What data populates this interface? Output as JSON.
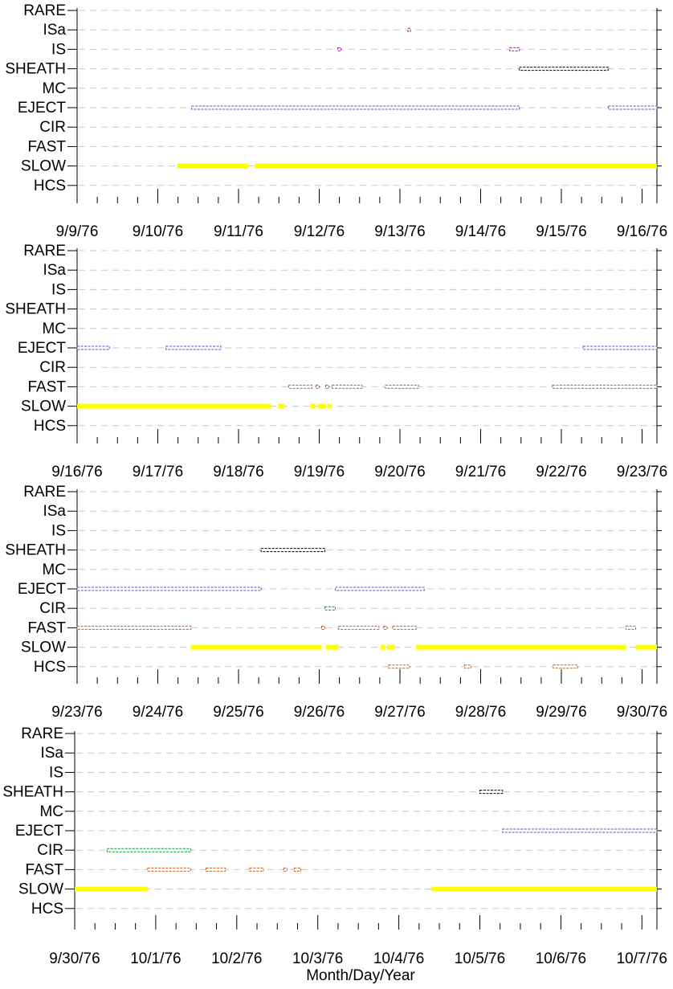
{
  "xlabel": "Month/Day/Year",
  "categories": [
    "RARE",
    "ISa",
    "IS",
    "SHEATH",
    "MC",
    "EJECT",
    "CIR",
    "FAST",
    "SLOW",
    "HCS"
  ],
  "colors": {
    "RARE": "#000000",
    "ISa": "#b22222",
    "IS": "#cc00cc",
    "SHEATH": "#000000",
    "MC": "#000000",
    "EJECT": "#5555bb",
    "CIR": "#009933",
    "FAST": "#c06020",
    "SLOW": "#ffff00",
    "HCS": "#cc6600",
    "grid": "#c8c8c8"
  },
  "chart_data": [
    {
      "type": "timeline",
      "x_start": "9/9/76",
      "x_end": "9/16/76",
      "ticks": [
        "9/9/76",
        "9/10/76",
        "9/11/76",
        "9/12/76",
        "9/13/76",
        "9/14/76",
        "9/15/76",
        "9/16/76"
      ],
      "grid": true,
      "intervals": [
        {
          "category": "ISa",
          "start": 4.1,
          "end": 4.13
        },
        {
          "category": "IS",
          "start": 3.23,
          "end": 3.27
        },
        {
          "category": "IS",
          "start": 5.36,
          "end": 5.48
        },
        {
          "category": "SHEATH",
          "start": 5.48,
          "end": 6.58
        },
        {
          "category": "EJECT",
          "start": 1.42,
          "end": 5.48
        },
        {
          "category": "EJECT",
          "start": 6.58,
          "end": 7.2
        },
        {
          "category": "SLOW",
          "start": 1.24,
          "end": 2.12
        },
        {
          "category": "SLOW",
          "start": 2.2,
          "end": 7.2
        }
      ]
    },
    {
      "type": "timeline",
      "x_start": "9/16/76",
      "x_end": "9/23/76",
      "ticks": [
        "9/16/76",
        "9/17/76",
        "9/18/76",
        "9/19/76",
        "9/20/76",
        "9/21/76",
        "9/22/76",
        "9/23/76"
      ],
      "grid": true,
      "intervals": [
        {
          "category": "EJECT",
          "start": 0.0,
          "end": 0.4
        },
        {
          "category": "EJECT",
          "start": 1.1,
          "end": 1.78
        },
        {
          "category": "EJECT",
          "start": 6.27,
          "end": 7.2
        },
        {
          "category": "FAST",
          "start": 2.62,
          "end": 2.91
        },
        {
          "category": "FAST",
          "start": 2.96,
          "end": 3.0
        },
        {
          "category": "FAST",
          "start": 3.08,
          "end": 3.12
        },
        {
          "category": "FAST",
          "start": 3.16,
          "end": 3.53
        },
        {
          "category": "FAST",
          "start": 3.82,
          "end": 4.23
        },
        {
          "category": "FAST",
          "start": 5.89,
          "end": 7.2
        },
        {
          "category": "SLOW",
          "start": 0.0,
          "end": 2.4
        },
        {
          "category": "SLOW",
          "start": 2.49,
          "end": 2.57
        },
        {
          "category": "SLOW",
          "start": 2.89,
          "end": 2.95
        },
        {
          "category": "SLOW",
          "start": 2.98,
          "end": 3.08
        },
        {
          "category": "SLOW",
          "start": 3.1,
          "end": 3.15
        }
      ]
    },
    {
      "type": "timeline",
      "x_start": "9/23/76",
      "x_end": "9/30/76",
      "ticks": [
        "9/23/76",
        "9/24/76",
        "9/25/76",
        "9/26/76",
        "9/27/76",
        "9/28/76",
        "9/29/76",
        "9/30/76"
      ],
      "grid": true,
      "intervals": [
        {
          "category": "SHEATH",
          "start": 2.28,
          "end": 3.07
        },
        {
          "category": "EJECT",
          "start": 0.0,
          "end": 2.28
        },
        {
          "category": "EJECT",
          "start": 3.2,
          "end": 4.3
        },
        {
          "category": "CIR",
          "start": 3.07,
          "end": 3.2
        },
        {
          "category": "FAST",
          "start": 0.0,
          "end": 1.41
        },
        {
          "category": "FAST",
          "start": 3.03,
          "end": 3.07
        },
        {
          "category": "FAST",
          "start": 3.24,
          "end": 3.74
        },
        {
          "category": "FAST",
          "start": 3.8,
          "end": 3.84
        },
        {
          "category": "FAST",
          "start": 3.91,
          "end": 4.2
        },
        {
          "category": "FAST",
          "start": 6.8,
          "end": 6.92
        },
        {
          "category": "SLOW",
          "start": 1.41,
          "end": 3.03
        },
        {
          "category": "SLOW",
          "start": 3.08,
          "end": 3.24
        },
        {
          "category": "SLOW",
          "start": 3.76,
          "end": 3.81
        },
        {
          "category": "SLOW",
          "start": 3.84,
          "end": 3.94
        },
        {
          "category": "SLOW",
          "start": 4.2,
          "end": 6.8
        },
        {
          "category": "SLOW",
          "start": 6.92,
          "end": 7.2
        },
        {
          "category": "HCS",
          "start": 3.86,
          "end": 4.12
        },
        {
          "category": "HCS",
          "start": 4.8,
          "end": 4.88
        },
        {
          "category": "HCS",
          "start": 5.9,
          "end": 6.2
        }
      ]
    },
    {
      "type": "timeline",
      "x_start": "9/30/76",
      "x_end": "10/7/76",
      "ticks": [
        "9/30/76",
        "10/1/76",
        "10/2/76",
        "10/3/76",
        "10/4/76",
        "10/5/76",
        "10/6/76",
        "10/7/76"
      ],
      "grid": true,
      "intervals": [
        {
          "category": "SHEATH",
          "start": 5.0,
          "end": 5.28
        },
        {
          "category": "EJECT",
          "start": 5.28,
          "end": 7.2
        },
        {
          "category": "CIR",
          "start": 0.4,
          "end": 1.43
        },
        {
          "category": "FAST",
          "start": 0.9,
          "end": 1.43
        },
        {
          "category": "FAST",
          "start": 1.62,
          "end": 1.86
        },
        {
          "category": "FAST",
          "start": 2.16,
          "end": 2.33
        },
        {
          "category": "FAST",
          "start": 2.58,
          "end": 2.62
        },
        {
          "category": "FAST",
          "start": 2.71,
          "end": 2.79
        },
        {
          "category": "SLOW",
          "start": 0.0,
          "end": 0.9
        },
        {
          "category": "SLOW",
          "start": 4.4,
          "end": 7.2
        }
      ]
    }
  ]
}
